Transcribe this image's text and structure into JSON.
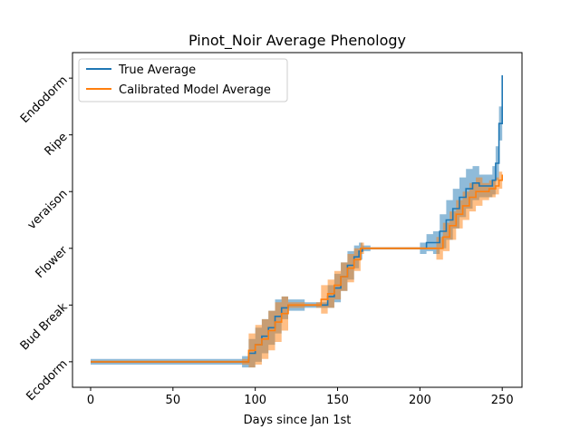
{
  "chart_data": {
    "type": "line",
    "title": "Pinot_Noir Average Phenology",
    "xlabel": "Days since Jan 1st",
    "ylabel": "",
    "xlim": [
      -11,
      262
    ],
    "ylim": [
      -0.45,
      5.45
    ],
    "xticks": [
      0,
      50,
      100,
      150,
      200,
      250
    ],
    "yticks": [
      0,
      1,
      2,
      3,
      4,
      5
    ],
    "ytick_labels": [
      "Ecodorm",
      "Bud Break",
      "Flower",
      "veraison",
      "Ripe",
      "Endodorm"
    ],
    "legend": {
      "position": "top-left",
      "entries": [
        "True Average",
        "Calibrated Model Average"
      ]
    },
    "grid": false,
    "series": [
      {
        "name": "True Average",
        "color": "#1f77b4",
        "x": [
          0,
          92,
          96,
          100,
          104,
          108,
          112,
          116,
          120,
          130,
          140,
          144,
          148,
          152,
          156,
          160,
          163,
          165,
          170,
          200,
          204,
          208,
          212,
          216,
          220,
          224,
          228,
          232,
          236,
          240,
          244,
          246,
          248,
          250
        ],
        "y": [
          0,
          0,
          0.15,
          0.3,
          0.45,
          0.6,
          0.8,
          0.95,
          1.0,
          1.0,
          1.0,
          1.15,
          1.3,
          1.5,
          1.7,
          1.85,
          1.95,
          2.0,
          2.0,
          2.0,
          2.1,
          2.1,
          2.3,
          2.5,
          2.7,
          2.9,
          3.05,
          3.15,
          3.1,
          3.1,
          3.2,
          3.5,
          4.2,
          5.05
        ],
        "band": [
          0.05,
          0.1,
          0.25,
          0.3,
          0.3,
          0.3,
          0.3,
          0.2,
          0.1,
          0.05,
          0.05,
          0.2,
          0.25,
          0.25,
          0.25,
          0.2,
          0.15,
          0.05,
          0.02,
          0.1,
          0.15,
          0.2,
          0.3,
          0.35,
          0.35,
          0.35,
          0.35,
          0.3,
          0.2,
          0.2,
          0.25,
          0.3,
          0.3,
          0.3
        ]
      },
      {
        "name": "Calibrated Model Average",
        "color": "#ff7f0e",
        "x": [
          0,
          92,
          96,
          100,
          104,
          108,
          112,
          116,
          120,
          130,
          137,
          140,
          144,
          148,
          152,
          156,
          160,
          164,
          166,
          170,
          200,
          210,
          214,
          218,
          222,
          226,
          230,
          234,
          238,
          242,
          246,
          248,
          250
        ],
        "y": [
          0,
          0,
          0.2,
          0.3,
          0.4,
          0.55,
          0.7,
          0.85,
          1.0,
          1.0,
          1.0,
          1.1,
          1.2,
          1.35,
          1.5,
          1.65,
          1.8,
          2.0,
          2.0,
          2.0,
          2.0,
          2.0,
          2.2,
          2.4,
          2.6,
          2.75,
          2.9,
          3.0,
          3.0,
          3.05,
          3.1,
          3.2,
          3.3
        ],
        "band": [
          0.02,
          0.05,
          0.3,
          0.35,
          0.35,
          0.35,
          0.35,
          0.3,
          0.05,
          0.02,
          0.05,
          0.25,
          0.25,
          0.25,
          0.25,
          0.25,
          0.2,
          0.1,
          0.02,
          0.02,
          0.02,
          0.2,
          0.25,
          0.25,
          0.25,
          0.25,
          0.25,
          0.25,
          0.15,
          0.15,
          0.15,
          0.15,
          0.15
        ]
      }
    ]
  }
}
